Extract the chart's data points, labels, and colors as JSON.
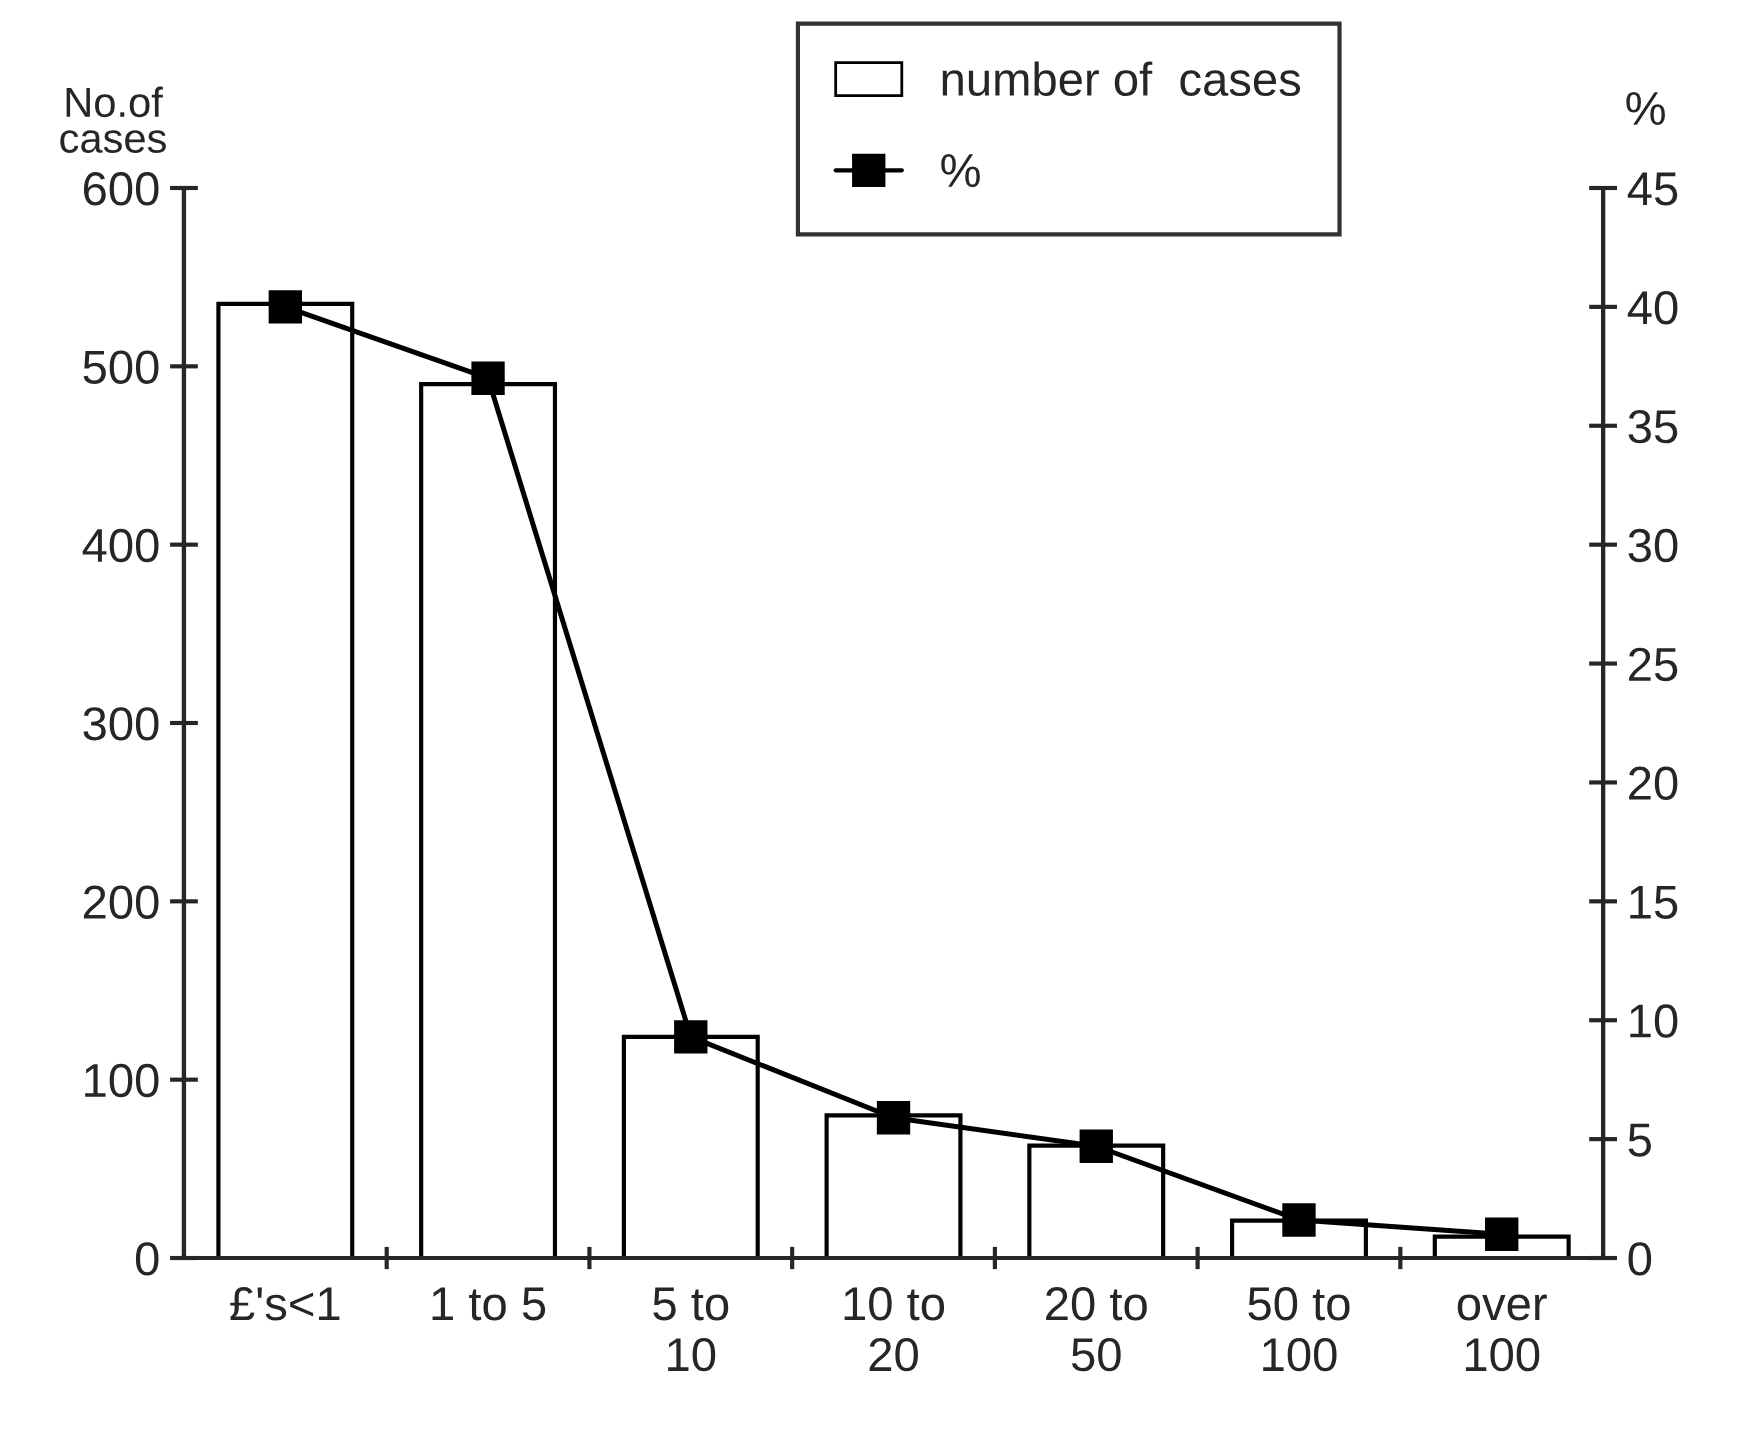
{
  "chart_data": {
    "type": "bar",
    "ylabel": "No.of\ncases",
    "y2label": "%",
    "categories": [
      "£'s<1",
      "1 to 5",
      "5 to\n10",
      "10 to\n20",
      "20 to\n50",
      "50 to\n100",
      "over\n100"
    ],
    "series": [
      {
        "name": "number of  cases",
        "color": "#ffffff",
        "values": [
          535,
          490,
          124,
          80,
          63,
          21,
          12
        ]
      },
      {
        "name": "%",
        "type": "line",
        "axis": "y2",
        "color": "#000000",
        "marker": "square",
        "values": [
          40,
          37,
          9.3,
          5.9,
          4.7,
          1.6,
          1.0
        ]
      }
    ],
    "ylim": [
      0,
      600
    ],
    "yticks": [
      0,
      100,
      200,
      300,
      400,
      500,
      600
    ],
    "y2lim": [
      0,
      45
    ],
    "y2ticks": [
      0,
      5,
      10,
      15,
      20,
      25,
      30,
      35,
      40,
      45
    ],
    "grid": false,
    "legend": "top"
  }
}
